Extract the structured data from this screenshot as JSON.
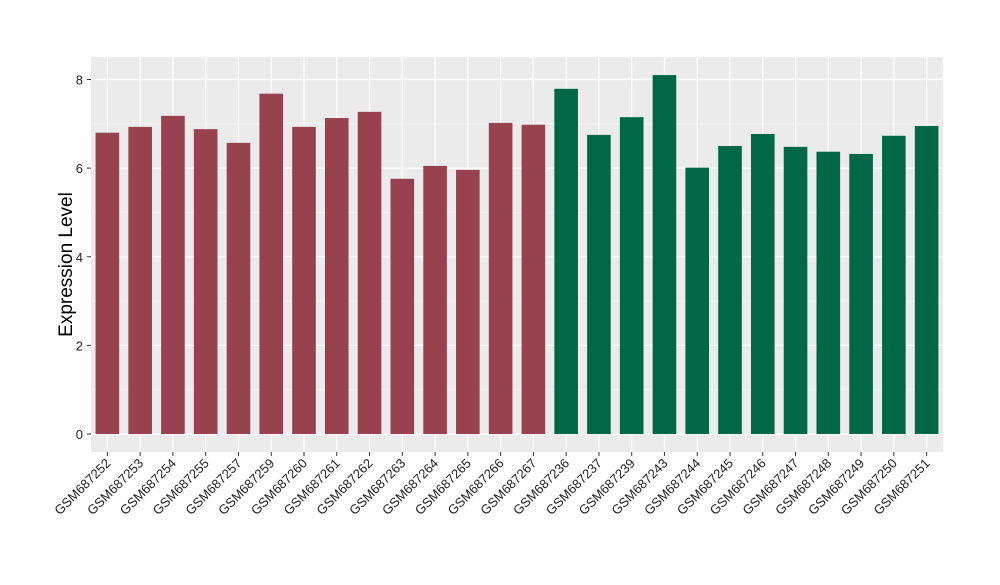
{
  "chart_data": {
    "type": "bar",
    "title": "",
    "xlabel": "",
    "ylabel": "Expression Level",
    "ylim": [
      0,
      8.4
    ],
    "yticks": [
      0,
      2,
      4,
      6,
      8
    ],
    "grid": true,
    "categories": [
      "GSM687252",
      "GSM687253",
      "GSM687254",
      "GSM687255",
      "GSM687257",
      "GSM687259",
      "GSM687260",
      "GSM687261",
      "GSM687262",
      "GSM687263",
      "GSM687264",
      "GSM687265",
      "GSM687266",
      "GSM687267",
      "GSM687236",
      "GSM687237",
      "GSM687239",
      "GSM687243",
      "GSM687244",
      "GSM687245",
      "GSM687246",
      "GSM687247",
      "GSM687248",
      "GSM687249",
      "GSM687250",
      "GSM687251"
    ],
    "values": [
      6.8,
      6.93,
      7.18,
      6.88,
      6.57,
      7.68,
      6.93,
      7.13,
      7.27,
      5.76,
      6.05,
      5.96,
      7.02,
      6.98,
      7.79,
      6.75,
      7.15,
      8.1,
      6.01,
      6.5,
      6.77,
      6.48,
      6.37,
      6.32,
      6.73,
      6.95
    ],
    "groups": [
      "1",
      "1",
      "1",
      "1",
      "1",
      "1",
      "1",
      "1",
      "1",
      "1",
      "1",
      "1",
      "1",
      "1",
      "2",
      "2",
      "2",
      "2",
      "2",
      "2",
      "2",
      "2",
      "2",
      "2",
      "2",
      "2"
    ],
    "colors": {
      "1": "#98414f",
      "2": "#006846",
      "panel": "#ebebeb",
      "grid_major": "#ffffff"
    }
  }
}
